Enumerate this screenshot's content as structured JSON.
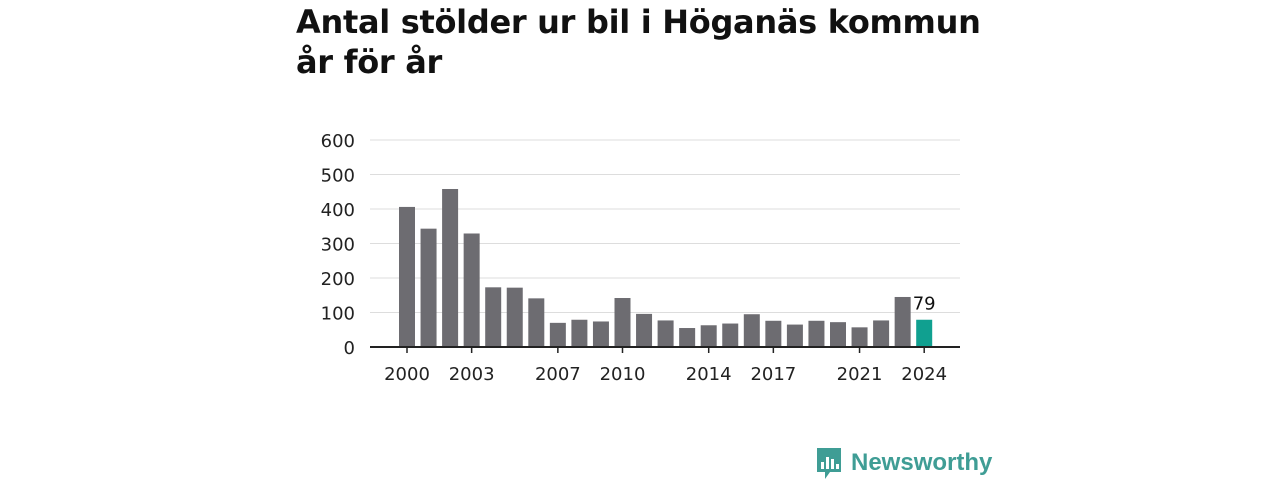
{
  "title": "Antal stölder ur bil i Höganäs kommun år för år",
  "brand": {
    "name": "Newsworthy",
    "color": "#3f9d95",
    "icon": "newsworthy-logo-icon"
  },
  "colors": {
    "bar": "#6d6c71",
    "highlight": "#10a090",
    "grid": "#dddddd",
    "axis": "#222222"
  },
  "chart_data": {
    "type": "bar",
    "title": "Antal stölder ur bil i Höganäs kommun år för år",
    "xlabel": "",
    "ylabel": "",
    "x": [
      2000,
      2001,
      2002,
      2003,
      2004,
      2005,
      2006,
      2007,
      2008,
      2009,
      2010,
      2011,
      2012,
      2013,
      2014,
      2015,
      2016,
      2017,
      2018,
      2019,
      2020,
      2021,
      2022,
      2023,
      2024
    ],
    "values": [
      406,
      343,
      458,
      329,
      173,
      172,
      141,
      70,
      79,
      74,
      142,
      96,
      77,
      55,
      63,
      68,
      95,
      76,
      65,
      76,
      72,
      57,
      77,
      145,
      79
    ],
    "x_tick_labels": [
      "2000",
      "2003",
      "2007",
      "2010",
      "2014",
      "2017",
      "2021",
      "2024"
    ],
    "y_ticks": [
      0,
      100,
      200,
      300,
      400,
      500,
      600
    ],
    "ylim": [
      0,
      600
    ],
    "grid": true,
    "highlight": {
      "x": 2024,
      "label": "79"
    }
  }
}
